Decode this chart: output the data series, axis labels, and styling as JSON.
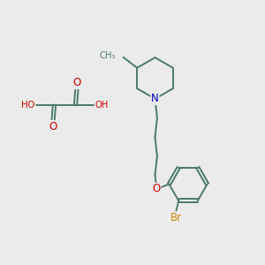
{
  "background_color": "#ebebeb",
  "atom_color_C": "#4a7a6a",
  "atom_color_N": "#0000cc",
  "atom_color_O": "#cc0000",
  "atom_color_Br": "#cc8800",
  "bond_color": "#4a7a6a",
  "figsize": [
    3.0,
    3.0
  ],
  "dpi": 100,
  "xlim": [
    0,
    10
  ],
  "ylim": [
    0,
    10
  ]
}
